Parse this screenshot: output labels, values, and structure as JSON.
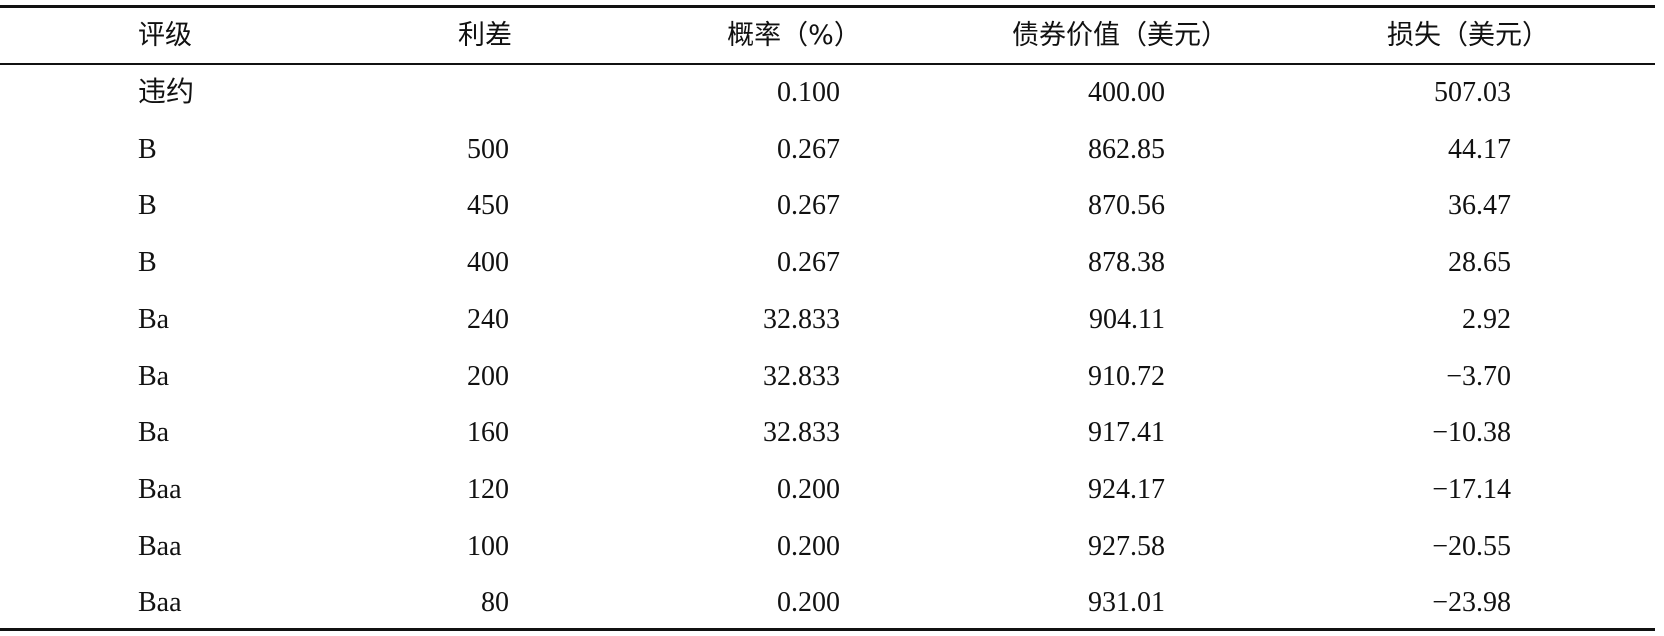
{
  "table": {
    "header": [
      "评级",
      "利差",
      "概率（%）",
      "债券价值（美元）",
      "损失（美元）"
    ],
    "rows": [
      [
        "违约",
        null,
        "0.100",
        "400.00",
        "507.03"
      ],
      [
        "B",
        "500",
        "0.267",
        "862.85",
        "44.17"
      ],
      [
        "B",
        "450",
        "0.267",
        "870.56",
        "36.47"
      ],
      [
        "B",
        "400",
        "0.267",
        "878.38",
        "28.65"
      ],
      [
        "Ba",
        "240",
        "32.833",
        "904.11",
        "2.92"
      ],
      [
        "Ba",
        "200",
        "32.833",
        "910.72",
        "−3.70"
      ],
      [
        "Ba",
        "160",
        "32.833",
        "917.41",
        "−10.38"
      ],
      [
        "Baa",
        "120",
        "0.200",
        "924.17",
        "−17.14"
      ],
      [
        "Baa",
        "100",
        "0.200",
        "927.58",
        "−20.55"
      ],
      [
        "Baa",
        "80",
        "0.200",
        "931.01",
        "−23.98"
      ]
    ]
  }
}
